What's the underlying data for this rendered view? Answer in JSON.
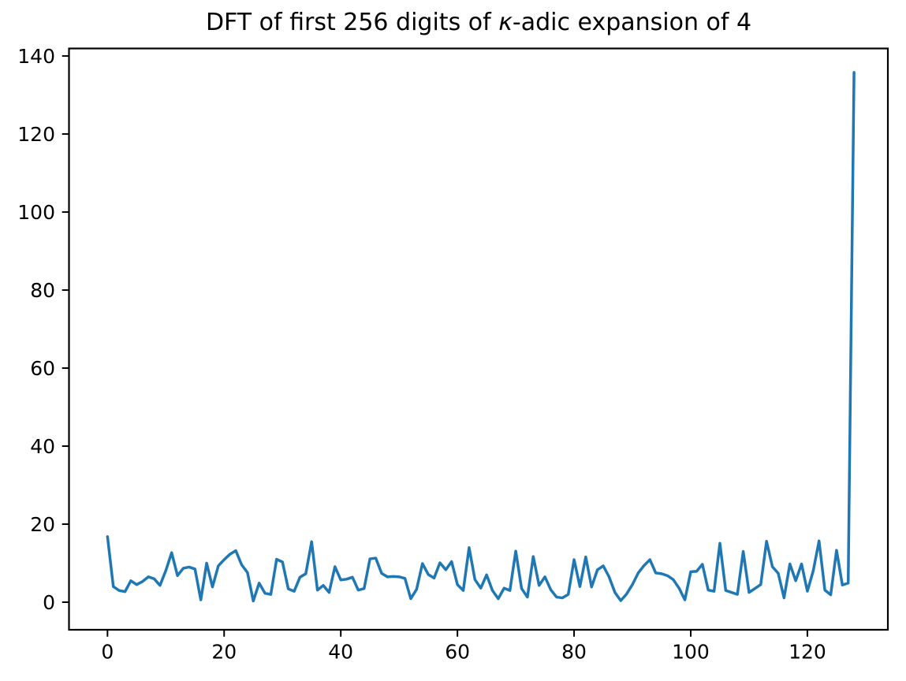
{
  "chart_data": {
    "type": "line",
    "title": "DFT of first 256 digits of κ-adic expansion of 4",
    "title_parts": {
      "prefix": "DFT of first 256 digits of ",
      "kappa": "κ",
      "suffix": "-adic expansion of 4"
    },
    "xlabel": "",
    "ylabel": "",
    "x_start": 0,
    "x_step": 1,
    "n_points": 129,
    "values": [
      16.8,
      4.0,
      3.0,
      2.7,
      5.5,
      4.5,
      5.3,
      6.5,
      6.0,
      4.3,
      8.1,
      12.7,
      6.8,
      8.7,
      9.0,
      8.5,
      0.6,
      10.0,
      3.9,
      9.3,
      10.9,
      12.3,
      13.2,
      9.6,
      7.6,
      0.3,
      4.9,
      2.3,
      2.0,
      11.0,
      10.3,
      3.4,
      2.8,
      6.4,
      7.3,
      15.5,
      3.1,
      4.3,
      2.5,
      9.1,
      5.7,
      5.9,
      6.4,
      3.1,
      3.5,
      11.1,
      11.3,
      7.4,
      6.5,
      6.6,
      6.5,
      6.1,
      0.9,
      3.3,
      9.9,
      7.1,
      6.2,
      10.1,
      8.3,
      10.4,
      4.5,
      3.0,
      14.0,
      5.8,
      3.6,
      7.0,
      3.0,
      0.9,
      3.6,
      3.0,
      13.1,
      3.5,
      1.3,
      11.7,
      4.3,
      6.5,
      3.2,
      1.3,
      1.1,
      2.0,
      10.9,
      4.0,
      11.6,
      3.9,
      8.3,
      9.3,
      6.5,
      2.5,
      0.4,
      2.1,
      4.5,
      7.5,
      9.4,
      10.9,
      7.5,
      7.3,
      6.8,
      5.8,
      3.6,
      0.6,
      7.8,
      7.9,
      9.7,
      3.1,
      2.8,
      15.1,
      3.0,
      2.5,
      2.0,
      13.0,
      2.5,
      3.5,
      4.5,
      15.6,
      9.1,
      7.4,
      1.1,
      9.8,
      5.5,
      9.8,
      2.8,
      8.0,
      15.7,
      3.1,
      1.9,
      13.3,
      4.4,
      4.9,
      135.8
    ],
    "xticks": [
      0,
      20,
      40,
      60,
      80,
      100,
      120
    ],
    "xtick_labels": [
      "0",
      "20",
      "40",
      "60",
      "80",
      "100",
      "120"
    ],
    "yticks": [
      0,
      20,
      40,
      60,
      80,
      100,
      120,
      140
    ],
    "ytick_labels": [
      "0",
      "20",
      "40",
      "60",
      "80",
      "100",
      "120",
      "140"
    ],
    "xlim": [
      -6.6,
      133.8
    ],
    "ylim": [
      -7.07,
      141.93
    ],
    "grid": false,
    "legend": null,
    "line_color": "#1f77b4",
    "axis_color": "#000000",
    "background_color": "#ffffff"
  }
}
